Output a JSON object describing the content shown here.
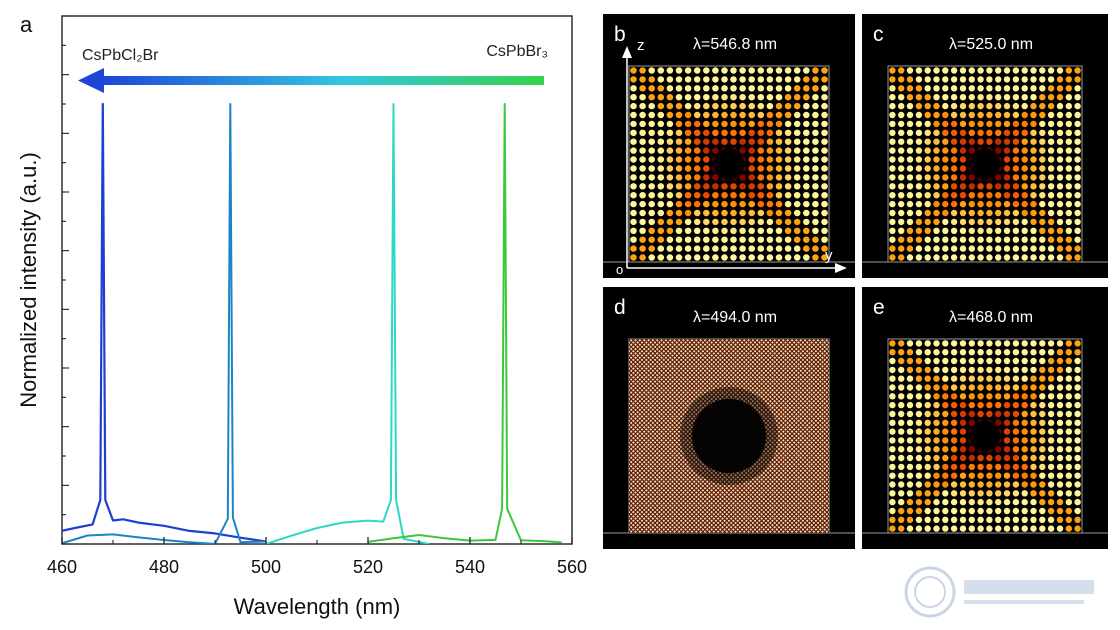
{
  "chart_data": [
    {
      "panel": "a",
      "type": "line",
      "xlabel": "Wavelength (nm)",
      "ylabel": "Normalized intensity (a.u.)",
      "xlim": [
        460,
        560
      ],
      "xticks": [
        460,
        480,
        500,
        520,
        540,
        560
      ],
      "arrow": {
        "left_label": "CsPbCl₂Br",
        "right_label": "CsPbBr₃",
        "direction": "right-to-left"
      },
      "series": [
        {
          "peak": 468.0,
          "color": "#1e3fd0",
          "x": [
            460,
            463,
            466,
            467.5,
            468.0,
            468.5,
            470,
            472,
            475,
            480,
            485,
            490,
            495,
            500
          ],
          "y": [
            0.03,
            0.035,
            0.04,
            0.1,
            1.0,
            0.1,
            0.05,
            0.055,
            0.05,
            0.045,
            0.035,
            0.03,
            0.02,
            0.01
          ]
        },
        {
          "peak": 494.0,
          "color": "#1a84c8",
          "x": [
            460,
            465,
            470,
            475,
            480,
            485,
            490,
            492.5,
            493.0,
            493.5,
            495,
            500
          ],
          "y": [
            0.0,
            0.02,
            0.025,
            0.02,
            0.015,
            0.01,
            0.005,
            0.06,
            1.0,
            0.06,
            0.004,
            0.0
          ]
        },
        {
          "peak": 525.0,
          "color": "#2ed8c6",
          "x": [
            500,
            505,
            510,
            515,
            520,
            523,
            524.5,
            525.0,
            525.5,
            527,
            532
          ],
          "y": [
            0.0,
            0.02,
            0.035,
            0.045,
            0.048,
            0.045,
            0.1,
            1.0,
            0.1,
            0.012,
            0.0
          ]
        },
        {
          "peak": 546.8,
          "color": "#3cc83c",
          "x": [
            520,
            525,
            530,
            535,
            540,
            545,
            546.3,
            546.8,
            547.3,
            550,
            555,
            558
          ],
          "y": [
            0.0,
            0.01,
            0.02,
            0.015,
            0.012,
            0.015,
            0.08,
            1.0,
            0.08,
            0.01,
            0.005,
            0.0
          ]
        }
      ]
    },
    {
      "panel": "b",
      "type": "heatmap",
      "title": "λ=546.8 nm",
      "axes": {
        "vertical": "z",
        "horizontal": "y",
        "origin": "o"
      },
      "pattern": "dots",
      "center_dark_radius": 0.1
    },
    {
      "panel": "c",
      "type": "heatmap",
      "title": "λ=525.0 nm",
      "pattern": "dots",
      "center_dark_radius": 0.1
    },
    {
      "panel": "d",
      "type": "heatmap",
      "title": "λ=494.0 nm",
      "pattern": "mesh",
      "center_dark_radius": 0.24
    },
    {
      "panel": "e",
      "type": "heatmap",
      "title": "λ=468.0 nm",
      "pattern": "dots",
      "center_dark_radius": 0.1
    }
  ]
}
